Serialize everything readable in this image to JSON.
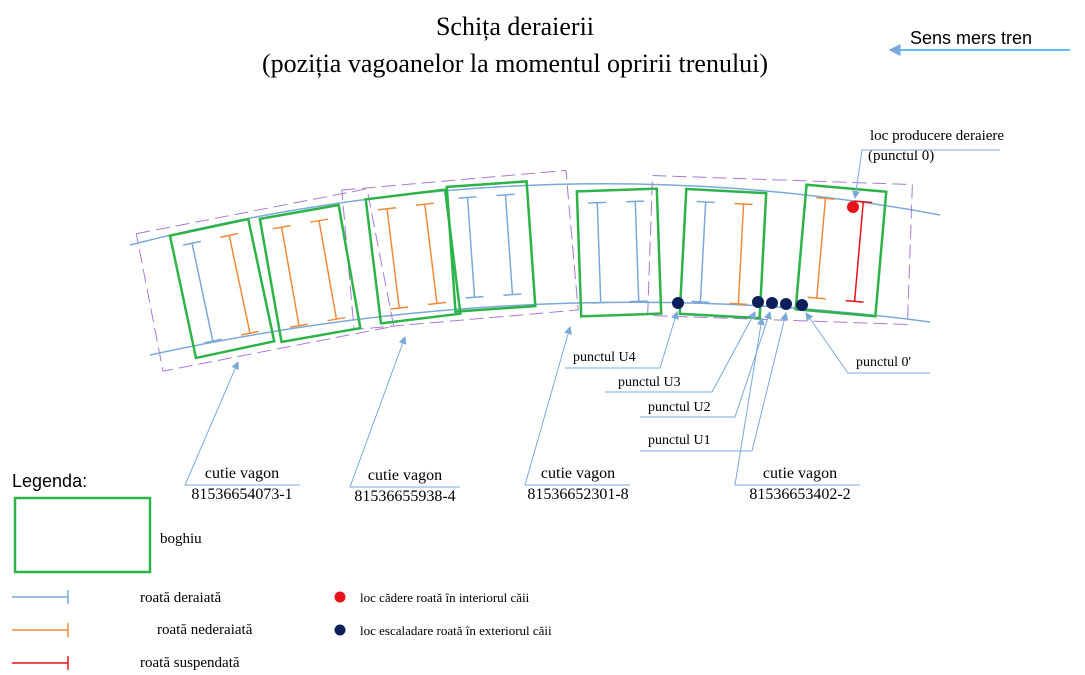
{
  "header": {
    "title": "Schița deraierii",
    "subtitle": "(poziția vagoanelor la momentul opririi trenului)",
    "direction": "Sens mers tren"
  },
  "annotations": {
    "origin": "loc producere deraiere",
    "origin_point": "(punctul 0)",
    "u4": "punctul U4",
    "u3": "punctul U3",
    "u2": "punctul U2",
    "u1": "punctul U1",
    "zero_prime": "punctul 0'"
  },
  "wagons": [
    {
      "label": "cutie vagon",
      "number": "81536654073-1"
    },
    {
      "label": "cutie vagon",
      "number": "81536655938-4"
    },
    {
      "label": "cutie vagon",
      "number": "81536652301-8"
    },
    {
      "label": "cutie vagon",
      "number": "81536653402-2"
    }
  ],
  "legend": {
    "title": "Legenda:",
    "bogie": "boghiu",
    "derailed": "roată deraiată",
    "not_derailed": "roată nederaiată",
    "suspended": "roată suspendată",
    "fall_inside": "loc cădere roată în interiorul căii",
    "climb_outside": "loc escaladare roată în exteriorul căii"
  }
}
